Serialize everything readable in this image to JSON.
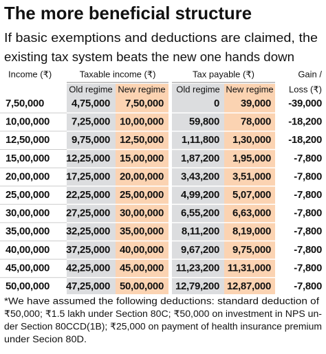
{
  "title": "The more beneficial structure",
  "subtitle": [
    "If basic exemptions and deductions are claimed, the",
    "existing tax system beats the new one hands down"
  ],
  "table": {
    "header_groups": [
      "Income (₹)",
      "Taxable income (₹)",
      "Tax payable (₹)",
      "Gain /"
    ],
    "columns": [
      "Old regime",
      "New regime",
      "Old regime",
      "New regime",
      "Loss (₹)"
    ],
    "rows": [
      [
        "7,50,000",
        "4,75,000",
        "7,50,000",
        "0",
        "39,000",
        "-39,000"
      ],
      [
        "10,00,000",
        "7,25,000",
        "10,00,000",
        "59,800",
        "78,000",
        "-18,200"
      ],
      [
        "12,50,000",
        "9,75,000",
        "12,50,000",
        "1,11,800",
        "1,30,000",
        "-18,200"
      ],
      [
        "15,00,000",
        "12,25,000",
        "15,00,000",
        "1,87,200",
        "1,95,000",
        "-7,800"
      ],
      [
        "20,00,000",
        "17,25,000",
        "20,00,000",
        "3,43,200",
        "3,51,000",
        "-7,800"
      ],
      [
        "25,00,000",
        "22,25,000",
        "25,00,000",
        "4,99,200",
        "5,07,000",
        "-7,800"
      ],
      [
        "30,00,000",
        "27,25,000",
        "30,00,000",
        "6,55,200",
        "6,63,000",
        "-7,800"
      ],
      [
        "35,00,000",
        "32,25,000",
        "35,00,000",
        "8,11,200",
        "8,19,000",
        "-7,800"
      ],
      [
        "40,00,000",
        "37,25,000",
        "40,00,000",
        "9,67,200",
        "9,75,000",
        "-7,800"
      ],
      [
        "45,00,000",
        "42,25,000",
        "45,00,000",
        "11,23,200",
        "11,31,000",
        "-7,800"
      ],
      [
        "50,00,000",
        "47,25,000",
        "50,00,000",
        "12,79,200",
        "12,87,000",
        "-7,800"
      ]
    ]
  },
  "footnote": [
    "*We have assumed the following deductions: standard deduction of",
    "₹50,000; ₹1.5 lakh under Section 80C; ₹50,000 on investment in NPS un-",
    "der Section 80CCD(1B); ₹25,000 on payment of health insurance premium",
    "under Secion 80D."
  ]
}
